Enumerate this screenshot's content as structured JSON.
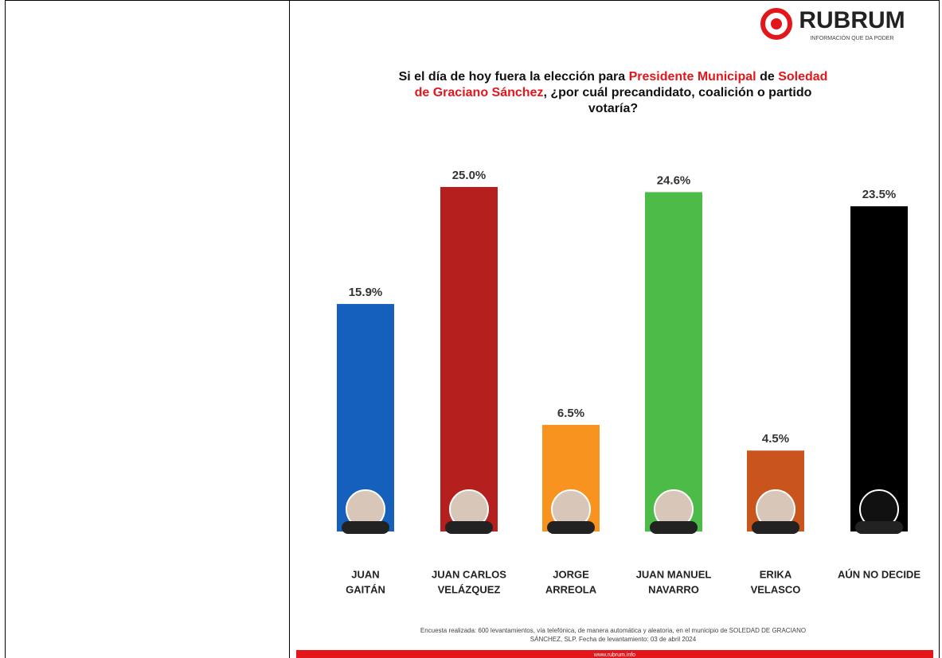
{
  "chart_data": {
    "type": "bar",
    "brand": "RUBRUM",
    "brand_tagline": "INFORMACIÓN QUE DA PODER",
    "title_lines": [
      [
        {
          "text": "Si el día de hoy fuera la elección para ",
          "color": "#111111"
        },
        {
          "text": "Presidente Municipal",
          "color": "#e3161b"
        },
        {
          "text": " de ",
          "color": "#111111"
        },
        {
          "text": "Soledad",
          "color": "#e3161b"
        }
      ],
      [
        {
          "text": "de Graciano Sánchez",
          "color": "#e3161b"
        },
        {
          "text": ", ¿por cuál precandidato, coalición o partido",
          "color": "#111111"
        }
      ],
      [
        {
          "text": "votaría?",
          "color": "#111111"
        }
      ]
    ],
    "categories": [
      [
        "JUAN",
        "GAITÁN"
      ],
      [
        "JUAN CARLOS",
        "VELÁZQUEZ"
      ],
      [
        "JORGE",
        "ARREOLA"
      ],
      [
        "JUAN MANUEL",
        "NAVARRO"
      ],
      [
        "ERIKA",
        "VELASCO"
      ],
      [
        "AÚN NO DECIDE"
      ]
    ],
    "values": [
      15.9,
      25.0,
      6.5,
      24.6,
      4.5,
      23.5
    ],
    "value_labels": [
      "15.9%",
      "25.0%",
      "6.5%",
      "24.6%",
      "4.5%",
      "23.5%"
    ],
    "colors": [
      "#1560bd",
      "#b5201e",
      "#f7931e",
      "#4cbb47",
      "#c9541d",
      "#000000"
    ],
    "ylim": [
      0,
      25
    ],
    "footer_lines": [
      "Encuesta realizada: 600 levantamientos, vía telefónica, de manera automática y aleatoria, en el municipio de SOLEDAD DE GRACIANO",
      "SÁNCHEZ, SLP. Fecha de levantamiento: 03 de abril 2024"
    ],
    "website": "www.rubrum.info"
  }
}
